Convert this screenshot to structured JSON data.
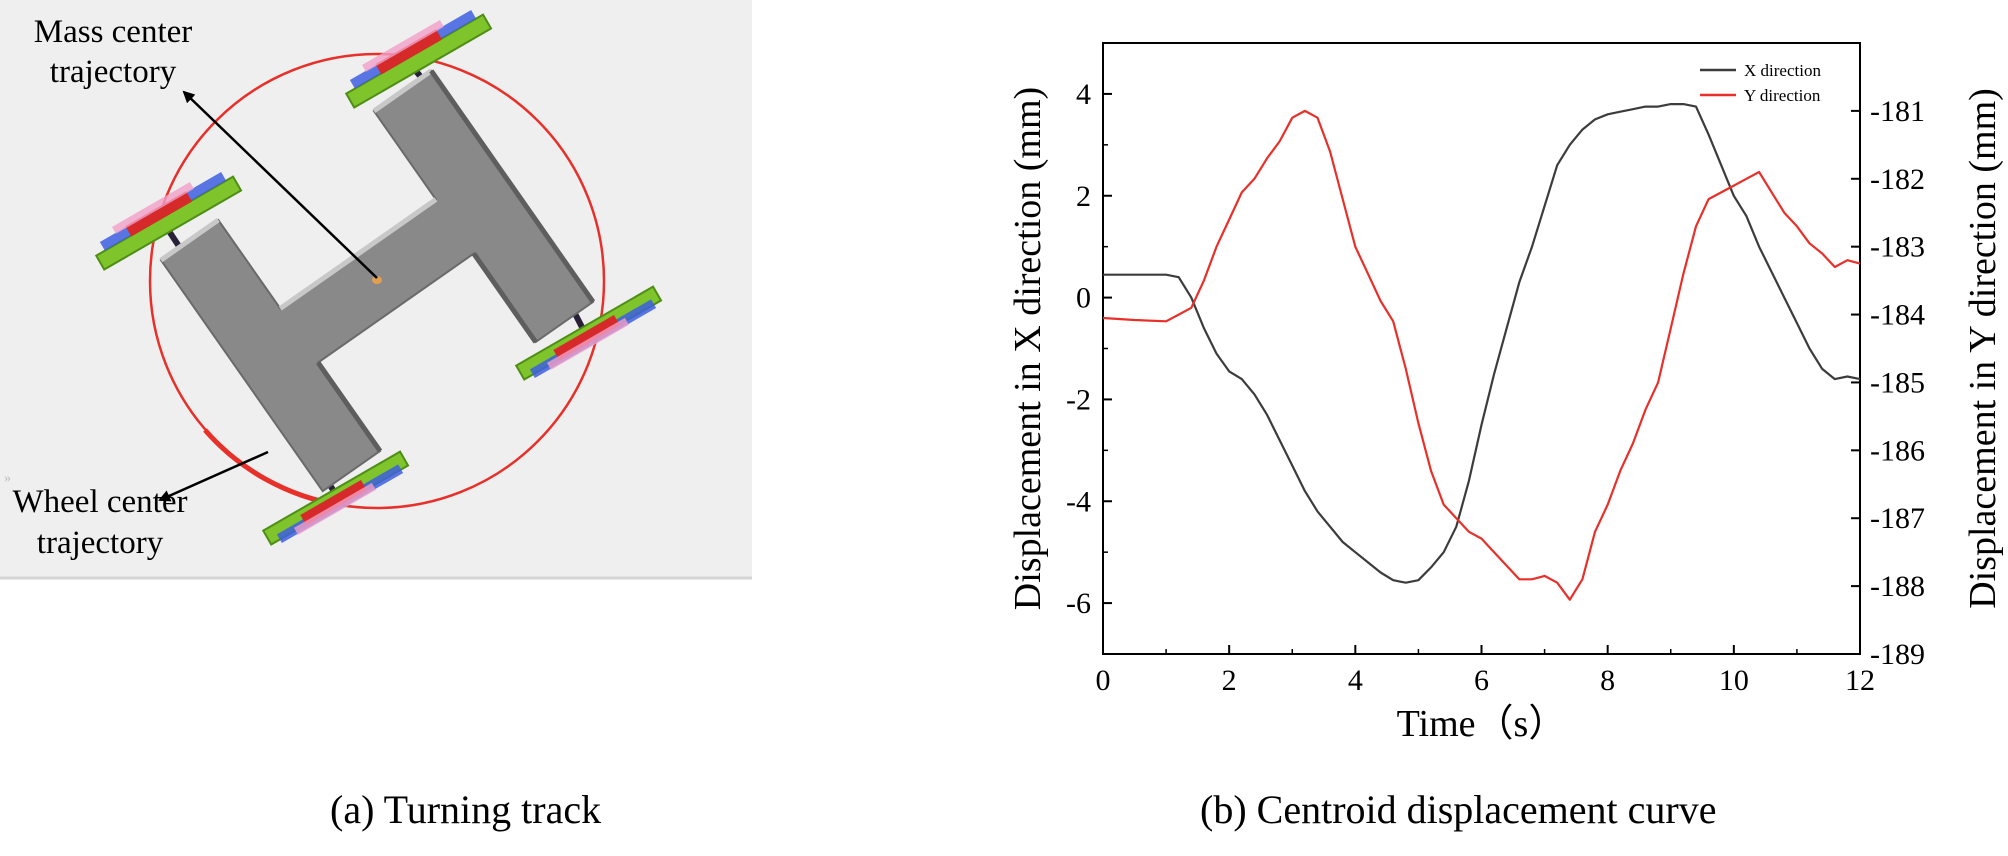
{
  "panel_a": {
    "caption": "(a) Turning track",
    "label_mass_line1": "Mass center",
    "label_mass_line2": "trajectory",
    "label_wheel_line1": "Wheel center",
    "label_wheel_line2": "trajectory",
    "colors": {
      "trajectory": "#e8302a",
      "body": "#8a8a8a",
      "wheel": "#7ec42a",
      "background": "#efefef"
    }
  },
  "panel_b": {
    "caption": "(b) Centroid displacement curve"
  },
  "chart_data": {
    "type": "line",
    "xlabel": "Time（s）",
    "ylabel_left": "Displacement in X direction (mm)",
    "ylabel_right": "Displacement in Y direction (mm)",
    "xlim": [
      0,
      12
    ],
    "ylim_left": [
      -7,
      5
    ],
    "ylim_right": [
      -189,
      -180
    ],
    "xticks": [
      0,
      2,
      4,
      6,
      8,
      10,
      12
    ],
    "yticks_left": [
      -6,
      -4,
      -2,
      0,
      2,
      4
    ],
    "yticks_right": [
      -189,
      -188,
      -187,
      -186,
      -185,
      -184,
      -183,
      -182,
      -181
    ],
    "grid": false,
    "legend_position": "top-right",
    "series": [
      {
        "name": "X direction",
        "axis": "left",
        "color": "#3c3c3c",
        "x": [
          0,
          0.5,
          1.0,
          1.2,
          1.4,
          1.6,
          1.8,
          2.0,
          2.2,
          2.4,
          2.6,
          2.8,
          3.0,
          3.2,
          3.4,
          3.6,
          3.8,
          4.0,
          4.2,
          4.4,
          4.6,
          4.8,
          5.0,
          5.2,
          5.4,
          5.6,
          5.8,
          6.0,
          6.2,
          6.4,
          6.6,
          6.8,
          7.0,
          7.2,
          7.4,
          7.6,
          7.8,
          8.0,
          8.2,
          8.4,
          8.6,
          8.8,
          9.0,
          9.2,
          9.4,
          9.6,
          9.8,
          10.0,
          10.2,
          10.4,
          10.6,
          10.8,
          11.0,
          11.2,
          11.4,
          11.6,
          11.8,
          12.0
        ],
        "y": [
          0.45,
          0.45,
          0.45,
          0.4,
          0.0,
          -0.6,
          -1.1,
          -1.45,
          -1.6,
          -1.9,
          -2.3,
          -2.8,
          -3.3,
          -3.8,
          -4.2,
          -4.5,
          -4.8,
          -5.0,
          -5.2,
          -5.4,
          -5.55,
          -5.6,
          -5.55,
          -5.3,
          -5.0,
          -4.5,
          -3.6,
          -2.5,
          -1.5,
          -0.6,
          0.3,
          1.0,
          1.8,
          2.6,
          3.0,
          3.3,
          3.5,
          3.6,
          3.65,
          3.7,
          3.75,
          3.75,
          3.8,
          3.8,
          3.75,
          3.2,
          2.6,
          2.0,
          1.6,
          1.0,
          0.5,
          0.0,
          -0.5,
          -1.0,
          -1.4,
          -1.6,
          -1.55,
          -1.6
        ]
      },
      {
        "name": "Y direction",
        "axis": "right",
        "color": "#e8302a",
        "x": [
          0,
          0.5,
          1.0,
          1.2,
          1.4,
          1.6,
          1.8,
          2.0,
          2.2,
          2.4,
          2.6,
          2.8,
          3.0,
          3.2,
          3.4,
          3.6,
          3.8,
          4.0,
          4.2,
          4.4,
          4.6,
          4.8,
          5.0,
          5.2,
          5.4,
          5.6,
          5.8,
          6.0,
          6.2,
          6.4,
          6.6,
          6.8,
          7.0,
          7.2,
          7.4,
          7.6,
          7.8,
          8.0,
          8.2,
          8.4,
          8.6,
          8.8,
          9.0,
          9.2,
          9.4,
          9.6,
          9.8,
          10.0,
          10.2,
          10.4,
          10.6,
          10.8,
          11.0,
          11.2,
          11.4,
          11.6,
          11.8,
          12.0
        ],
        "y": [
          -184.05,
          -184.08,
          -184.1,
          -184.0,
          -183.9,
          -183.5,
          -183.0,
          -182.6,
          -182.2,
          -182.0,
          -181.7,
          -181.45,
          -181.1,
          -181.0,
          -181.1,
          -181.6,
          -182.3,
          -183.0,
          -183.4,
          -183.8,
          -184.1,
          -184.8,
          -185.6,
          -186.3,
          -186.8,
          -187.0,
          -187.2,
          -187.3,
          -187.5,
          -187.7,
          -187.9,
          -187.9,
          -187.85,
          -187.95,
          -188.2,
          -187.9,
          -187.2,
          -186.8,
          -186.3,
          -185.9,
          -185.4,
          -185.0,
          -184.2,
          -183.4,
          -182.7,
          -182.3,
          -182.2,
          -182.1,
          -182.0,
          -181.9,
          -182.2,
          -182.5,
          -182.7,
          -182.95,
          -183.1,
          -183.3,
          -183.2,
          -183.25
        ]
      }
    ]
  }
}
